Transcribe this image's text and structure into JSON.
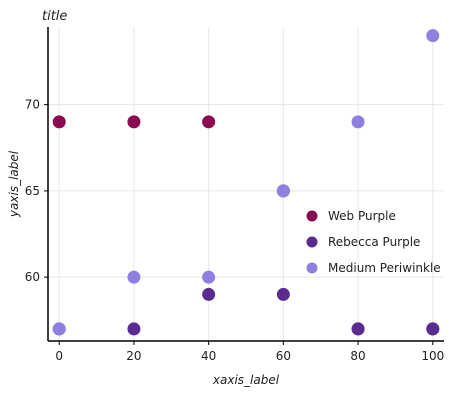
{
  "chart_data": {
    "type": "line",
    "title": "title",
    "xlabel": "xaxis_label",
    "ylabel": "yaxis_label",
    "xlim": [
      -3,
      103
    ],
    "ylim": [
      56.3,
      74.5
    ],
    "xticks": [
      0,
      20,
      40,
      60,
      80,
      100
    ],
    "yticks": [
      60,
      65,
      70
    ],
    "grid": true,
    "legend_position": "right",
    "series": [
      {
        "name": "Web Purple",
        "color": "#8B0A50",
        "x": [
          0,
          20,
          40,
          60,
          80,
          100
        ],
        "y": [
          69.0,
          69.0,
          69.0,
          65.0,
          57.0,
          57.0
        ]
      },
      {
        "name": "Rebecca Purple",
        "color": "#5A2B91",
        "x": [
          0,
          20,
          40,
          60,
          80,
          100
        ],
        "y": [
          57.0,
          57.0,
          59.0,
          59.0,
          57.0,
          57.0
        ]
      },
      {
        "name": "Medium Periwinkle",
        "color": "#8E7FE0",
        "x": [
          0,
          20,
          40,
          60,
          80,
          100
        ],
        "y": [
          57.0,
          60.0,
          60.0,
          65.0,
          69.0,
          74.0
        ]
      }
    ],
    "legend_order": [
      "Web Purple",
      "Rebecca Purple",
      "Medium Periwinkle"
    ]
  }
}
